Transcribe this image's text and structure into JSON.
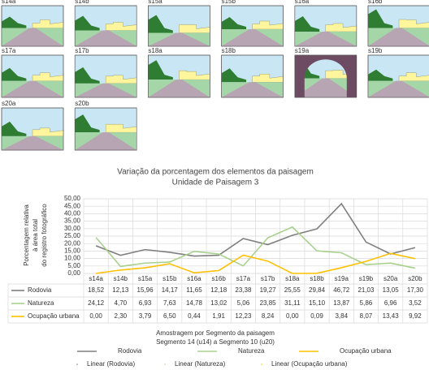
{
  "thumbnails": [
    "s14a",
    "s14b",
    "s15a",
    "s15b",
    "s16a",
    "s16b",
    "s17a",
    "s17b",
    "s18a",
    "s18b",
    "s19a",
    "s19b",
    "s20a",
    "s20b"
  ],
  "chart_data": {
    "type": "line",
    "title": "Variação da porcentagem dos elementos da paisagem",
    "subtitle": "Unidade de Paisagem 3",
    "y_label": [
      "Porcentagem relativa",
      "à área total",
      "do registro fotográfico"
    ],
    "x_label": [
      "Amostragem  por Segmento  da  paisagem",
      "Segmento  14 (u14) a Segmento  10 (u20)"
    ],
    "categories": [
      "s14a",
      "s14b",
      "s15a",
      "s15b",
      "s16a",
      "s16b",
      "s17a",
      "s17b",
      "s18a",
      "s18b",
      "s19a",
      "s19b",
      "s20a",
      "s20b"
    ],
    "series": [
      {
        "name": "Rodovia",
        "color": "#7f7f7f",
        "values": [
          18.52,
          12.13,
          15.96,
          14.17,
          11.65,
          12.18,
          23.38,
          19.27,
          25.55,
          29.84,
          46.72,
          21.03,
          13.05,
          17.3
        ],
        "value_labels": [
          "18,52",
          "12,13",
          "15,96",
          "14,17",
          "11,65",
          "12,18",
          "23,38",
          "19,27",
          "25,55",
          "29,84",
          "46,72",
          "21,03",
          "13,05",
          "17,30"
        ]
      },
      {
        "name": "Natureza",
        "color": "#a9d18e",
        "values": [
          24.12,
          4.7,
          6.93,
          7.63,
          14.78,
          13.02,
          5.06,
          23.85,
          31.11,
          15.1,
          13.87,
          5.86,
          6.96,
          3.52
        ],
        "value_labels": [
          "24,12",
          "4,70",
          "6,93",
          "7,63",
          "14,78",
          "13,02",
          "5,06",
          "23,85",
          "31,11",
          "15,10",
          "13,87",
          "5,86",
          "6,96",
          "3,52"
        ]
      },
      {
        "name": "Ocupação urbana",
        "color": "#ffc000",
        "values": [
          0.0,
          2.3,
          3.79,
          6.5,
          0.44,
          1.91,
          12.23,
          8.24,
          0.0,
          0.09,
          3.84,
          8.07,
          13.43,
          9.92
        ],
        "value_labels": [
          "0,00",
          "2,30",
          "3,79",
          "6,50",
          "0,44",
          "1,91",
          "12,23",
          "8,24",
          "0,00",
          "0,09",
          "3,84",
          "8,07",
          "13,43",
          "9,92"
        ]
      }
    ],
    "trendlines": [
      "Linear (Rodovia)",
      "Linear (Natureza)",
      "Linear (Ocupação urbana)"
    ],
    "ylim": [
      0,
      50
    ],
    "yticks": [
      {
        "value": 0,
        "label": "0,00"
      },
      {
        "value": 5,
        "label": "5,00"
      },
      {
        "value": 10,
        "label": "10,00"
      },
      {
        "value": 15,
        "label": "15,00"
      },
      {
        "value": 20,
        "label": "20,00"
      },
      {
        "value": 25,
        "label": "25,00"
      },
      {
        "value": 30,
        "label": "30,00"
      },
      {
        "value": 35,
        "label": "35,00"
      },
      {
        "value": 40,
        "label": "40,00"
      },
      {
        "value": 45,
        "label": "45,00"
      },
      {
        "value": 50,
        "label": "50,00"
      }
    ],
    "grid": true
  }
}
